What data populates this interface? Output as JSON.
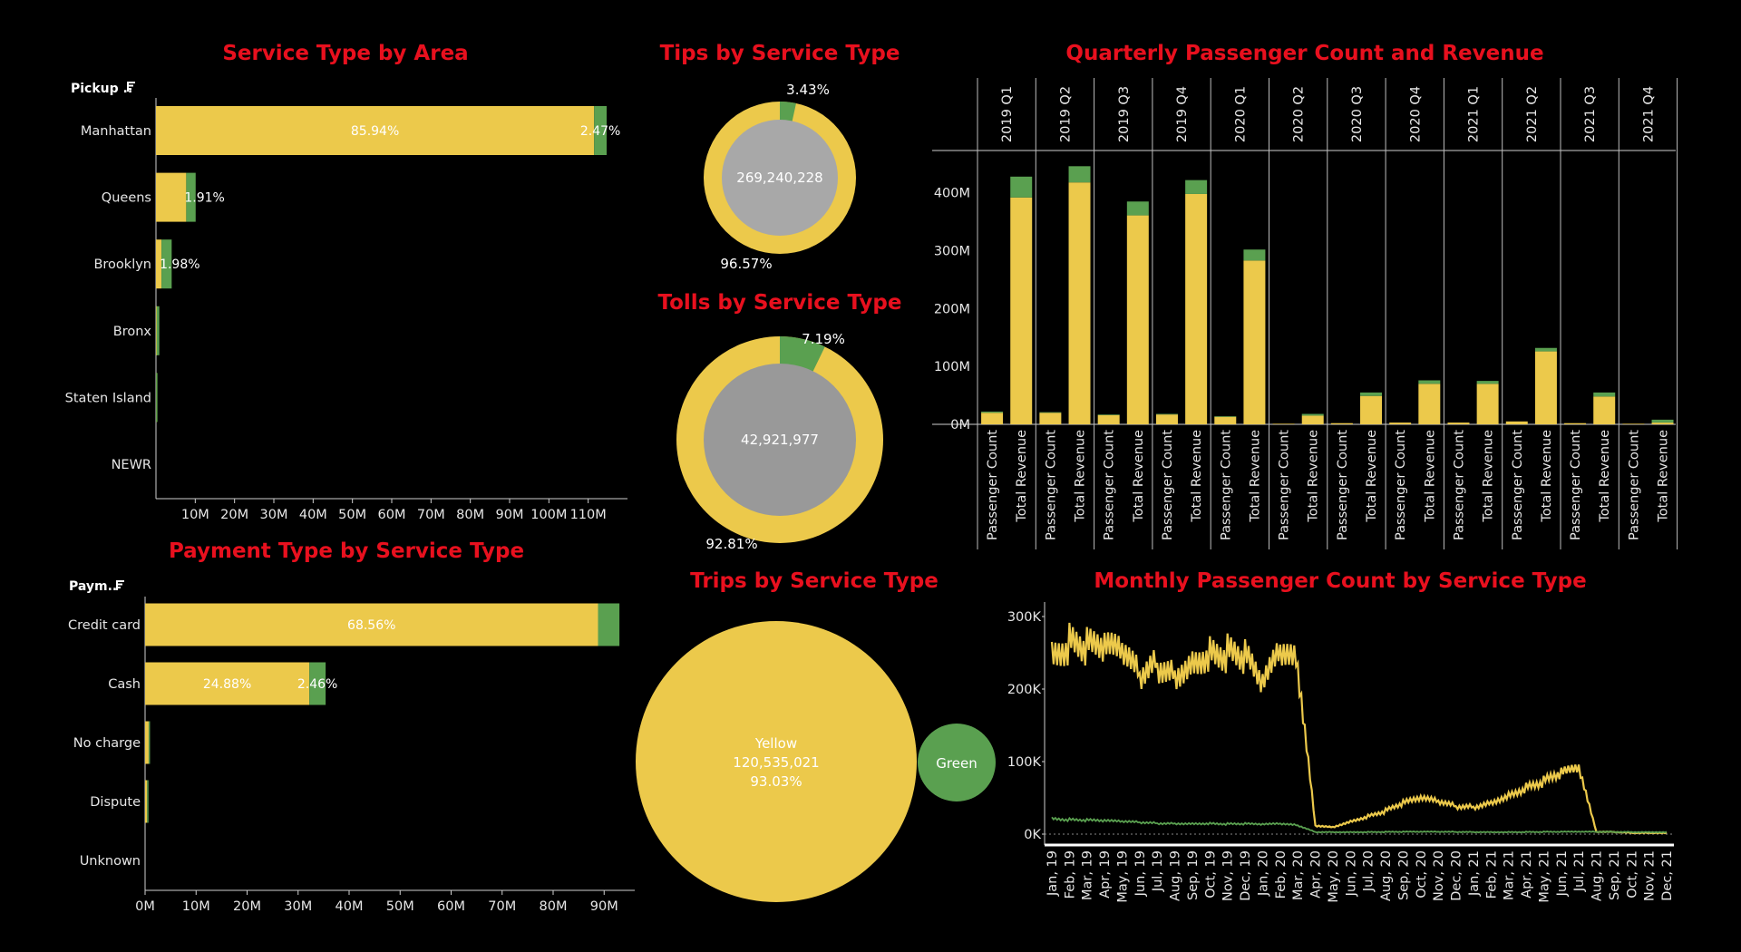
{
  "colors": {
    "yellow": "#ecc94b",
    "green": "#5aa050",
    "gray_tips": "#a8a8a8",
    "gray_tolls": "#999999",
    "title": "#e8101e",
    "bg": "#000000"
  },
  "area_chart": {
    "title": "Service Type by Area",
    "filter_label": "Pickup ..",
    "filter_icon": "filter-sort-icon",
    "chart_data": {
      "type": "bar",
      "orientation": "horizontal",
      "stacked": true,
      "categories": [
        "Manhattan",
        "Queens",
        "Brooklyn",
        "Bronx",
        "Staten Island",
        "NEWR"
      ],
      "series": [
        {
          "values": [
            111500000,
            7700000,
            1400000,
            150000,
            30000,
            0
          ]
        },
        {
          "values": [
            3200000,
            2400000,
            2600000,
            700000,
            30000,
            0
          ]
        }
      ],
      "data_labels": [
        {
          "category": "Manhattan",
          "text": "85.94%"
        },
        {
          "category": "Manhattan",
          "text": "2.47%"
        },
        {
          "category": "Queens",
          "text": "1.91%"
        },
        {
          "category": "Brooklyn",
          "text": "1.98%"
        }
      ],
      "xticks": [
        "10M",
        "20M",
        "30M",
        "40M",
        "50M",
        "60M",
        "70M",
        "80M",
        "90M",
        "100M",
        "110M"
      ],
      "xlim": [
        0,
        120000000
      ]
    }
  },
  "payment_chart": {
    "title": "Payment Type by Service Type",
    "filter_label": "Paym..",
    "filter_icon": "filter-sort-icon",
    "chart_data": {
      "type": "bar",
      "orientation": "horizontal",
      "stacked": true,
      "categories": [
        "Credit card",
        "Cash",
        "No charge",
        "Dispute",
        "Unknown"
      ],
      "series": [
        {
          "values": [
            88800000,
            32200000,
            700000,
            400000,
            0
          ]
        },
        {
          "values": [
            4200000,
            3200000,
            100000,
            50000,
            0
          ]
        }
      ],
      "data_labels": [
        {
          "category": "Credit card",
          "text": "68.56%"
        },
        {
          "category": "Cash",
          "text": "24.88%"
        },
        {
          "category": "Cash",
          "text": "2.46%"
        }
      ],
      "xticks": [
        "0M",
        "10M",
        "20M",
        "30M",
        "40M",
        "50M",
        "60M",
        "70M",
        "80M",
        "90M"
      ],
      "xlim": [
        0,
        96000000
      ]
    }
  },
  "tips_chart": {
    "title": "Tips by Service Type",
    "total": "269,240,228",
    "chart_data": {
      "type": "pie",
      "donut": true,
      "values": [
        96.57,
        3.43
      ],
      "labels": [
        "96.57%",
        "3.43%"
      ]
    }
  },
  "tolls_chart": {
    "title": "Tolls by Service Type",
    "total": "42,921,977",
    "chart_data": {
      "type": "pie",
      "donut": true,
      "values": [
        92.81,
        7.19
      ],
      "labels": [
        "92.81%",
        "7.19%"
      ]
    }
  },
  "trips_chart": {
    "title": "Trips by Service Type",
    "chart_data": {
      "type": "bubble",
      "bubbles": [
        {
          "name": "Yellow",
          "value": "120,535,021",
          "pct": "93.03%"
        },
        {
          "name": "Green"
        }
      ]
    }
  },
  "quarterly_chart": {
    "title": "Quarterly Passenger Count and Revenue",
    "chart_data": {
      "type": "bar",
      "stacked": true,
      "quarters": [
        "2019 Q1",
        "2019 Q2",
        "2019 Q3",
        "2019 Q4",
        "2020 Q1",
        "2020 Q2",
        "2020 Q3",
        "2020 Q4",
        "2021 Q1",
        "2021 Q2",
        "2021 Q3",
        "2021 Q4"
      ],
      "measures": [
        "Passenger Count",
        "Total Revenue"
      ],
      "passenger_count": {
        "yellow": [
          20,
          20,
          16,
          17,
          13,
          1,
          2,
          3,
          3,
          5,
          2,
          1
        ],
        "green": [
          2,
          1,
          1,
          1,
          1,
          0,
          0,
          0,
          0,
          0,
          0,
          0
        ]
      },
      "total_revenue": {
        "yellow": [
          392,
          418,
          361,
          398,
          283,
          15,
          49,
          70,
          70,
          126,
          48,
          3
        ],
        "green": [
          36,
          28,
          24,
          24,
          19,
          3,
          6,
          6,
          5,
          6,
          7,
          5
        ]
      },
      "yticks": [
        "0M",
        "100M",
        "200M",
        "300M",
        "400M"
      ],
      "ylim": [
        0,
        470
      ]
    }
  },
  "monthly_chart": {
    "title": "Monthly Passenger Count by Service Type",
    "chart_data": {
      "type": "line",
      "series": [
        {
          "color": "yellow",
          "points": [
            [
              "Jan, 19",
              250
            ],
            [
              "Feb, 19",
              265
            ],
            [
              "Mar, 19",
              255
            ],
            [
              "Apr, 19",
              250
            ],
            [
              "May, 19",
              245
            ],
            [
              "Jun, 19",
              215
            ],
            [
              "Jul, 19",
              235
            ],
            [
              "Aug, 19",
              225
            ],
            [
              "Sep, 19",
              245
            ],
            [
              "Oct, 19",
              255
            ],
            [
              "Nov, 19",
              250
            ],
            [
              "Dec, 19",
              240
            ],
            [
              "Jan, 20",
              200
            ],
            [
              "Feb, 20",
              245
            ],
            [
              "Mar, 20",
              230
            ],
            [
              "Apr, 20",
              12
            ],
            [
              "May, 20",
              10
            ],
            [
              "Jun, 20",
              18
            ],
            [
              "Jul, 20",
              25
            ],
            [
              "Aug, 20",
              32
            ],
            [
              "Sep, 20",
              42
            ],
            [
              "Oct, 20",
              48
            ],
            [
              "Nov, 20",
              44
            ],
            [
              "Dec, 20",
              38
            ],
            [
              "Jan, 21",
              38
            ],
            [
              "Feb, 21",
              45
            ],
            [
              "Mar, 21",
              55
            ],
            [
              "Apr, 21",
              65
            ],
            [
              "May, 21",
              72
            ],
            [
              "Jun, 21",
              82
            ],
            [
              "Jul, 21",
              88
            ],
            [
              "Aug, 21",
              3
            ],
            [
              "Sep, 21",
              3
            ],
            [
              "Oct, 21",
              2
            ],
            [
              "Nov, 21",
              2
            ],
            [
              "Dec, 21",
              2
            ]
          ]
        },
        {
          "color": "green",
          "points": [
            [
              "Jan, 19",
              22
            ],
            [
              "Feb, 19",
              20
            ],
            [
              "Mar, 19",
              19
            ],
            [
              "Apr, 19",
              18
            ],
            [
              "May, 19",
              17
            ],
            [
              "Jun, 19",
              16
            ],
            [
              "Jul, 19",
              15
            ],
            [
              "Aug, 19",
              15
            ],
            [
              "Sep, 19",
              15
            ],
            [
              "Oct, 19",
              15
            ],
            [
              "Nov, 19",
              14
            ],
            [
              "Dec, 19",
              14
            ],
            [
              "Jan, 20",
              13
            ],
            [
              "Feb, 20",
              14
            ],
            [
              "Mar, 20",
              12
            ],
            [
              "Apr, 20",
              3
            ],
            [
              "May, 20",
              3
            ],
            [
              "Jun, 20",
              3
            ],
            [
              "Jul, 20",
              3
            ],
            [
              "Aug, 20",
              3
            ],
            [
              "Sep, 20",
              3
            ],
            [
              "Oct, 20",
              3
            ],
            [
              "Nov, 20",
              3
            ],
            [
              "Dec, 20",
              3
            ],
            [
              "Jan, 21",
              3
            ],
            [
              "Feb, 21",
              3
            ],
            [
              "Mar, 21",
              3
            ],
            [
              "Apr, 21",
              3
            ],
            [
              "May, 21",
              3
            ],
            [
              "Jun, 21",
              3
            ],
            [
              "Jul, 21",
              3
            ],
            [
              "Aug, 21",
              3
            ],
            [
              "Sep, 21",
              3
            ],
            [
              "Oct, 21",
              3
            ],
            [
              "Nov, 21",
              3
            ],
            [
              "Dec, 21",
              3
            ]
          ]
        }
      ],
      "y_unit": "K",
      "yticks": [
        "0K",
        "100K",
        "200K",
        "300K"
      ],
      "ylim": [
        0,
        310
      ],
      "xticks": [
        "Jan, 19",
        "Feb, 19",
        "Mar, 19",
        "Apr, 19",
        "May, 19",
        "Jun, 19",
        "Jul, 19",
        "Aug, 19",
        "Sep, 19",
        "Oct, 19",
        "Nov, 19",
        "Dec, 19",
        "Jan, 20",
        "Feb, 20",
        "Mar, 20",
        "Apr, 20",
        "May, 20",
        "Jun, 20",
        "Jul, 20",
        "Aug, 20",
        "Sep, 20",
        "Oct, 20",
        "Nov, 20",
        "Dec, 20",
        "Jan, 21",
        "Feb, 21",
        "Mar, 21",
        "Apr, 21",
        "May, 21",
        "Jun, 21",
        "Jul, 21",
        "Aug, 21",
        "Sep, 21",
        "Oct, 21",
        "Nov, 21",
        "Dec, 21"
      ]
    }
  }
}
